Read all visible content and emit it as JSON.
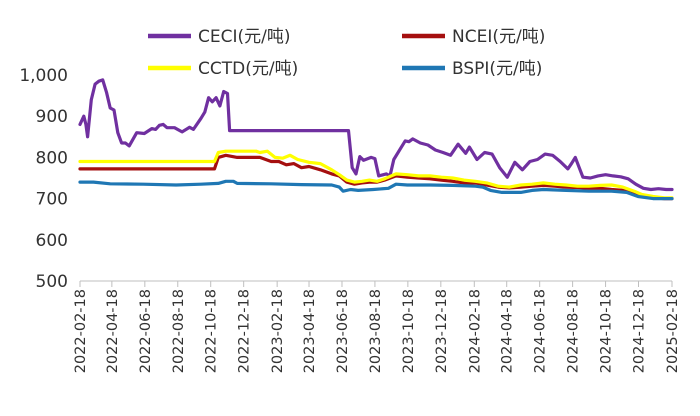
{
  "chart_data": {
    "type": "line",
    "x_format": "date",
    "x_tick_labels": [
      "2022-02-18",
      "2022-04-18",
      "2022-06-18",
      "2022-08-18",
      "2022-10-18",
      "2022-12-18",
      "2023-02-18",
      "2023-04-18",
      "2023-06-18",
      "2023-08-18",
      "2023-10-18",
      "2023-12-18",
      "2024-02-18",
      "2024-04-18",
      "2024-06-18",
      "2024-08-18",
      "2024-10-18",
      "2024-12-18",
      "2025-02-18"
    ],
    "ylim": [
      500,
      1000
    ],
    "y_ticks": [
      500,
      600,
      700,
      800,
      900,
      1000
    ],
    "y_tick_labels": [
      "500",
      "600",
      "700",
      "800",
      "900",
      "1,000"
    ],
    "legend": {
      "placement": "top",
      "columns": 2
    },
    "grid": false,
    "series": [
      {
        "name": "CECI(元/吨)",
        "color": "#7030A0",
        "points": [
          [
            "2022-02-18",
            880
          ],
          [
            "2022-02-25",
            900
          ],
          [
            "2022-03-01",
            880
          ],
          [
            "2022-03-04",
            850
          ],
          [
            "2022-03-11",
            940
          ],
          [
            "2022-03-18",
            978
          ],
          [
            "2022-03-25",
            985
          ],
          [
            "2022-04-01",
            988
          ],
          [
            "2022-04-08",
            958
          ],
          [
            "2022-04-15",
            920
          ],
          [
            "2022-04-22",
            915
          ],
          [
            "2022-04-29",
            860
          ],
          [
            "2022-05-06",
            835
          ],
          [
            "2022-05-13",
            835
          ],
          [
            "2022-05-20",
            828
          ],
          [
            "2022-06-03",
            860
          ],
          [
            "2022-06-17",
            858
          ],
          [
            "2022-07-01",
            870
          ],
          [
            "2022-07-08",
            868
          ],
          [
            "2022-07-15",
            878
          ],
          [
            "2022-07-22",
            880
          ],
          [
            "2022-07-29",
            872
          ],
          [
            "2022-08-12",
            872
          ],
          [
            "2022-08-26",
            862
          ],
          [
            "2022-09-09",
            873
          ],
          [
            "2022-09-16",
            868
          ],
          [
            "2022-09-30",
            895
          ],
          [
            "2022-10-07",
            910
          ],
          [
            "2022-10-14",
            945
          ],
          [
            "2022-10-21",
            935
          ],
          [
            "2022-10-28",
            945
          ],
          [
            "2022-11-04",
            925
          ],
          [
            "2022-11-11",
            960
          ],
          [
            "2022-11-18",
            955
          ],
          [
            "2022-11-22",
            865
          ],
          [
            "2023-06-30",
            865
          ],
          [
            "2023-07-07",
            775
          ],
          [
            "2023-07-14",
            760
          ],
          [
            "2023-07-21",
            802
          ],
          [
            "2023-07-28",
            793
          ],
          [
            "2023-08-11",
            800
          ],
          [
            "2023-08-18",
            797
          ],
          [
            "2023-08-25",
            755
          ],
          [
            "2023-09-08",
            760
          ],
          [
            "2023-09-15",
            755
          ],
          [
            "2023-09-22",
            795
          ],
          [
            "2023-10-06",
            825
          ],
          [
            "2023-10-13",
            840
          ],
          [
            "2023-10-20",
            838
          ],
          [
            "2023-10-27",
            845
          ],
          [
            "2023-11-10",
            835
          ],
          [
            "2023-11-24",
            830
          ],
          [
            "2023-12-08",
            818
          ],
          [
            "2023-12-22",
            812
          ],
          [
            "2024-01-05",
            805
          ],
          [
            "2024-01-19",
            832
          ],
          [
            "2024-02-02",
            810
          ],
          [
            "2024-02-09",
            825
          ],
          [
            "2024-02-23",
            795
          ],
          [
            "2024-03-08",
            812
          ],
          [
            "2024-03-22",
            808
          ],
          [
            "2024-04-05",
            775
          ],
          [
            "2024-04-19",
            752
          ],
          [
            "2024-05-03",
            788
          ],
          [
            "2024-05-17",
            770
          ],
          [
            "2024-05-31",
            790
          ],
          [
            "2024-06-14",
            795
          ],
          [
            "2024-06-28",
            808
          ],
          [
            "2024-07-12",
            805
          ],
          [
            "2024-07-26",
            790
          ],
          [
            "2024-08-09",
            772
          ],
          [
            "2024-08-16",
            785
          ],
          [
            "2024-08-23",
            800
          ],
          [
            "2024-09-06",
            752
          ],
          [
            "2024-09-20",
            750
          ],
          [
            "2024-10-04",
            755
          ],
          [
            "2024-10-18",
            758
          ],
          [
            "2024-11-01",
            755
          ],
          [
            "2024-11-15",
            753
          ],
          [
            "2024-11-29",
            748
          ],
          [
            "2024-12-13",
            735
          ],
          [
            "2024-12-27",
            725
          ],
          [
            "2025-01-10",
            722
          ],
          [
            "2025-01-24",
            724
          ],
          [
            "2025-02-07",
            722
          ],
          [
            "2025-02-18",
            722
          ]
        ]
      },
      {
        "name": "NCEI(元/吨)",
        "color": "#A50F0F",
        "points": [
          [
            "2022-02-18",
            772
          ],
          [
            "2022-10-25",
            772
          ],
          [
            "2022-11-01",
            800
          ],
          [
            "2022-11-15",
            805
          ],
          [
            "2022-12-06",
            800
          ],
          [
            "2023-01-17",
            800
          ],
          [
            "2023-02-07",
            790
          ],
          [
            "2023-02-21",
            790
          ],
          [
            "2023-03-07",
            782
          ],
          [
            "2023-03-21",
            785
          ],
          [
            "2023-04-04",
            775
          ],
          [
            "2023-04-18",
            778
          ],
          [
            "2023-05-09",
            770
          ],
          [
            "2023-05-30",
            760
          ],
          [
            "2023-06-13",
            755
          ],
          [
            "2023-06-27",
            740
          ],
          [
            "2023-07-11",
            735
          ],
          [
            "2023-07-25",
            738
          ],
          [
            "2023-08-08",
            740
          ],
          [
            "2023-08-22",
            740
          ],
          [
            "2023-09-05",
            745
          ],
          [
            "2023-09-26",
            755
          ],
          [
            "2023-10-17",
            752
          ],
          [
            "2023-11-07",
            750
          ],
          [
            "2023-11-28",
            748
          ],
          [
            "2023-12-19",
            745
          ],
          [
            "2024-01-09",
            742
          ],
          [
            "2024-01-30",
            738
          ],
          [
            "2024-02-20",
            738
          ],
          [
            "2024-03-12",
            733
          ],
          [
            "2024-04-02",
            728
          ],
          [
            "2024-04-23",
            726
          ],
          [
            "2024-05-14",
            728
          ],
          [
            "2024-06-04",
            730
          ],
          [
            "2024-06-25",
            732
          ],
          [
            "2024-07-16",
            730
          ],
          [
            "2024-08-06",
            728
          ],
          [
            "2024-08-27",
            727
          ],
          [
            "2024-09-17",
            725
          ],
          [
            "2024-10-08",
            725
          ],
          [
            "2024-10-29",
            722
          ],
          [
            "2024-11-19",
            720
          ],
          [
            "2024-12-10",
            712
          ],
          [
            "2024-12-24",
            705
          ],
          [
            "2025-01-14",
            702
          ],
          [
            "2025-02-04",
            700
          ],
          [
            "2025-02-18",
            700
          ]
        ]
      },
      {
        "name": "CCTD(元/吨)",
        "color": "#FFFF00",
        "points": [
          [
            "2022-02-18",
            790
          ],
          [
            "2022-10-25",
            790
          ],
          [
            "2022-11-01",
            812
          ],
          [
            "2022-11-15",
            815
          ],
          [
            "2022-12-13",
            815
          ],
          [
            "2023-01-10",
            815
          ],
          [
            "2023-01-17",
            812
          ],
          [
            "2023-01-31",
            815
          ],
          [
            "2023-02-14",
            800
          ],
          [
            "2023-02-28",
            798
          ],
          [
            "2023-03-14",
            805
          ],
          [
            "2023-03-28",
            795
          ],
          [
            "2023-04-18",
            788
          ],
          [
            "2023-05-09",
            785
          ],
          [
            "2023-05-30",
            770
          ],
          [
            "2023-06-13",
            758
          ],
          [
            "2023-06-27",
            745
          ],
          [
            "2023-07-11",
            740
          ],
          [
            "2023-07-25",
            742
          ],
          [
            "2023-08-08",
            745
          ],
          [
            "2023-08-22",
            742
          ],
          [
            "2023-09-05",
            748
          ],
          [
            "2023-09-26",
            760
          ],
          [
            "2023-10-17",
            758
          ],
          [
            "2023-11-07",
            755
          ],
          [
            "2023-11-28",
            755
          ],
          [
            "2023-12-19",
            752
          ],
          [
            "2024-01-09",
            750
          ],
          [
            "2024-01-30",
            745
          ],
          [
            "2024-02-20",
            742
          ],
          [
            "2024-03-12",
            738
          ],
          [
            "2024-04-02",
            730
          ],
          [
            "2024-04-23",
            728
          ],
          [
            "2024-05-14",
            733
          ],
          [
            "2024-06-04",
            735
          ],
          [
            "2024-06-25",
            738
          ],
          [
            "2024-07-16",
            735
          ],
          [
            "2024-08-06",
            733
          ],
          [
            "2024-08-27",
            730
          ],
          [
            "2024-09-17",
            730
          ],
          [
            "2024-10-08",
            732
          ],
          [
            "2024-10-29",
            733
          ],
          [
            "2024-11-19",
            728
          ],
          [
            "2024-12-10",
            718
          ],
          [
            "2024-12-24",
            710
          ],
          [
            "2025-01-14",
            705
          ],
          [
            "2025-02-04",
            702
          ],
          [
            "2025-02-18",
            702
          ]
        ]
      },
      {
        "name": "BSPI(元/吨)",
        "color": "#1F77B4",
        "points": [
          [
            "2022-02-18",
            740
          ],
          [
            "2022-03-15",
            740
          ],
          [
            "2022-04-15",
            736
          ],
          [
            "2022-06-15",
            735
          ],
          [
            "2022-08-15",
            733
          ],
          [
            "2022-09-30",
            735
          ],
          [
            "2022-11-01",
            737
          ],
          [
            "2022-11-15",
            742
          ],
          [
            "2022-11-29",
            742
          ],
          [
            "2022-12-06",
            737
          ],
          [
            "2023-02-07",
            736
          ],
          [
            "2023-04-04",
            734
          ],
          [
            "2023-05-30",
            733
          ],
          [
            "2023-06-13",
            728
          ],
          [
            "2023-06-20",
            718
          ],
          [
            "2023-07-04",
            722
          ],
          [
            "2023-07-18",
            720
          ],
          [
            "2023-08-15",
            722
          ],
          [
            "2023-09-12",
            725
          ],
          [
            "2023-09-26",
            735
          ],
          [
            "2023-10-17",
            733
          ],
          [
            "2023-11-28",
            733
          ],
          [
            "2024-01-09",
            732
          ],
          [
            "2024-02-20",
            730
          ],
          [
            "2024-03-05",
            728
          ],
          [
            "2024-03-19",
            720
          ],
          [
            "2024-04-09",
            715
          ],
          [
            "2024-05-14",
            715
          ],
          [
            "2024-06-04",
            720
          ],
          [
            "2024-06-25",
            722
          ],
          [
            "2024-08-06",
            720
          ],
          [
            "2024-09-17",
            718
          ],
          [
            "2024-10-29",
            718
          ],
          [
            "2024-11-26",
            715
          ],
          [
            "2024-12-17",
            705
          ],
          [
            "2025-01-14",
            700
          ],
          [
            "2025-02-04",
            700
          ],
          [
            "2025-02-18",
            700
          ]
        ]
      }
    ]
  }
}
